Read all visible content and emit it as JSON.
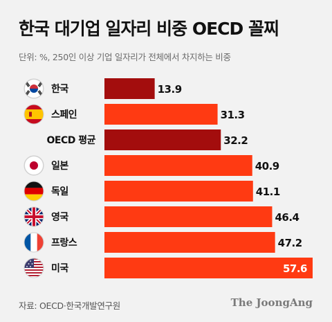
{
  "title": "한국 대기업 일자리 비중 OECD 꼴찌",
  "subtitle": "단위: %, 250인 이상 기업 일자리가 전체에서 차지하는 비중",
  "source": "자료: OECD·한국개발연구원",
  "brand": "The JoongAng",
  "colors": {
    "highlight": "#a30d0d",
    "normal": "#ff3a12",
    "value_text_dark": "#111111",
    "value_text_light": "#ffffff"
  },
  "chart_data": {
    "type": "bar",
    "orientation": "horizontal",
    "title": "한국 대기업 일자리 비중 OECD 꼴찌",
    "subtitle": "단위: %, 250인 이상 기업 일자리가 전체에서 차지하는 비중",
    "categories": [
      "한국",
      "스페인",
      "OECD 평균",
      "일본",
      "독일",
      "영국",
      "프랑스",
      "미국"
    ],
    "values": [
      13.9,
      31.3,
      32.2,
      40.9,
      41.1,
      46.4,
      47.2,
      57.6
    ],
    "value_labels": [
      "13.9",
      "31.3",
      "32.2",
      "40.9",
      "41.1",
      "46.4",
      "47.2",
      "57.6"
    ],
    "icons": [
      "flag-korea-icon",
      "flag-spain-icon",
      "",
      "flag-japan-icon",
      "flag-germany-icon",
      "flag-uk-icon",
      "flag-france-icon",
      "flag-usa-icon"
    ],
    "highlighted": [
      "한국",
      "OECD 평균"
    ],
    "xlim": [
      0,
      57.6
    ],
    "grid": false,
    "legend": "none"
  }
}
